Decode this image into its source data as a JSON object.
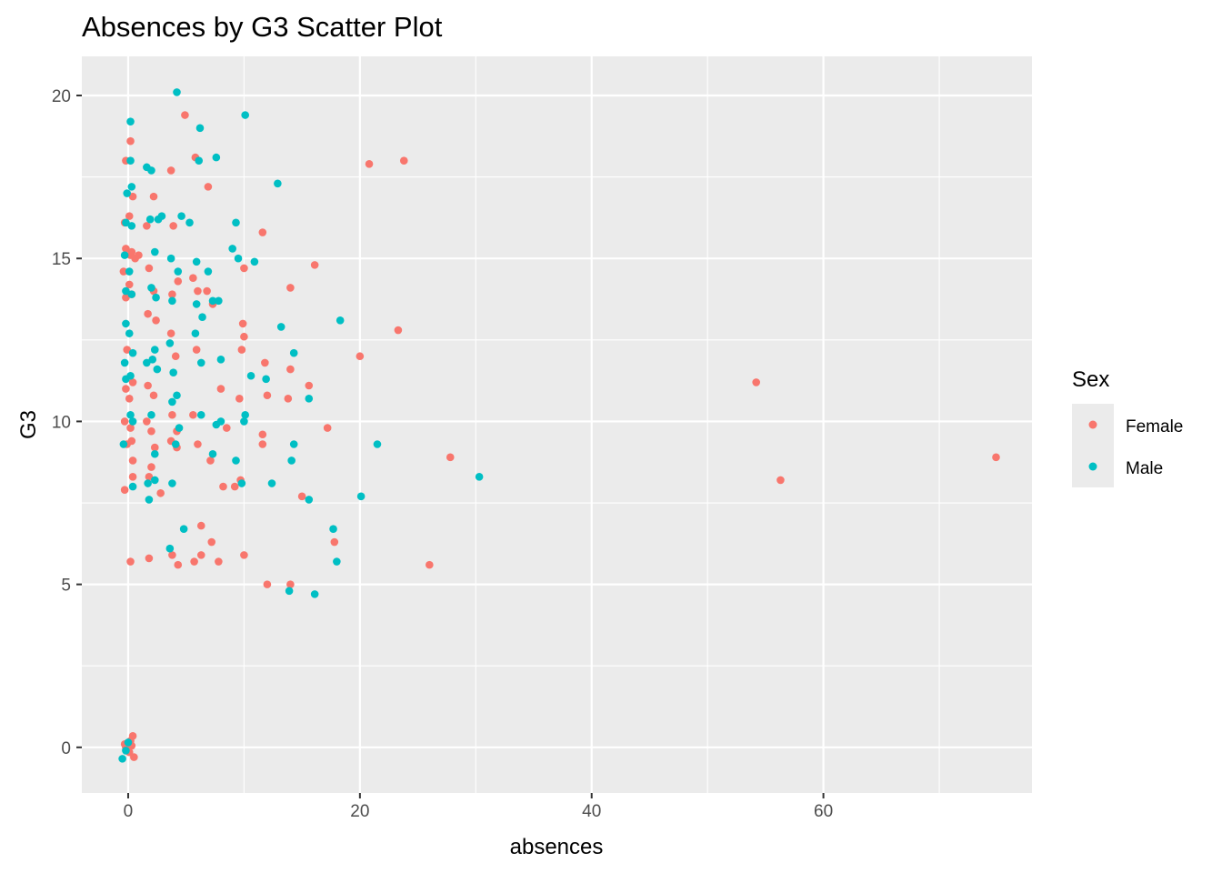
{
  "chart_data": {
    "type": "scatter",
    "title": "Absences by G3 Scatter Plot",
    "xlabel": "absences",
    "ylabel": "G3",
    "xlim": [
      -4,
      78
    ],
    "ylim": [
      -1.4,
      21.2
    ],
    "x_ticks": [
      0,
      20,
      40,
      60
    ],
    "y_ticks": [
      0,
      5,
      10,
      15,
      20
    ],
    "x_tick_labels": [
      "0",
      "20",
      "40",
      "60"
    ],
    "y_tick_labels": [
      "0",
      "5",
      "10",
      "15",
      "20"
    ],
    "grid": true,
    "panel_background": "#ebebeb",
    "legend": {
      "title": "Sex",
      "position": "right",
      "entries": [
        {
          "label": "Female",
          "color": "#f8766d"
        },
        {
          "label": "Male",
          "color": "#00bfc4"
        }
      ]
    },
    "series": [
      {
        "name": "Female",
        "color": "#f8766d",
        "points": [
          [
            -0.2,
            18.0
          ],
          [
            0.2,
            18.6
          ],
          [
            0.4,
            16.9
          ],
          [
            -0.3,
            16.1
          ],
          [
            0.1,
            16.3
          ],
          [
            0.3,
            15.2
          ],
          [
            -0.2,
            15.3
          ],
          [
            0.2,
            15.1
          ],
          [
            0.6,
            15.0
          ],
          [
            0.9,
            15.1
          ],
          [
            -0.4,
            14.6
          ],
          [
            0.1,
            14.2
          ],
          [
            -0.2,
            13.8
          ],
          [
            0.3,
            13.9
          ],
          [
            -0.1,
            12.2
          ],
          [
            0.4,
            11.2
          ],
          [
            -0.2,
            11.0
          ],
          [
            0.1,
            10.7
          ],
          [
            -0.3,
            10.0
          ],
          [
            0.2,
            9.8
          ],
          [
            -0.1,
            9.3
          ],
          [
            0.3,
            9.4
          ],
          [
            0.4,
            8.3
          ],
          [
            0.4,
            8.8
          ],
          [
            -0.3,
            7.9
          ],
          [
            0.2,
            5.7
          ],
          [
            -0.2,
            0.0
          ],
          [
            0.2,
            0.2
          ],
          [
            0.4,
            0.35
          ],
          [
            -0.3,
            0.1
          ],
          [
            0.1,
            -0.15
          ],
          [
            0.5,
            -0.3
          ],
          [
            0.3,
            0.05
          ],
          [
            1.6,
            16.0
          ],
          [
            2.2,
            16.9
          ],
          [
            1.8,
            14.7
          ],
          [
            2.2,
            14.0
          ],
          [
            1.7,
            13.3
          ],
          [
            2.4,
            13.1
          ],
          [
            1.7,
            11.1
          ],
          [
            2.2,
            10.8
          ],
          [
            1.6,
            10.0
          ],
          [
            2.0,
            9.7
          ],
          [
            2.3,
            9.2
          ],
          [
            1.8,
            8.3
          ],
          [
            2.0,
            8.6
          ],
          [
            1.8,
            5.8
          ],
          [
            2.8,
            7.8
          ],
          [
            3.7,
            17.7
          ],
          [
            3.9,
            16.0
          ],
          [
            3.8,
            13.9
          ],
          [
            3.7,
            12.7
          ],
          [
            4.3,
            14.3
          ],
          [
            4.1,
            12.0
          ],
          [
            3.8,
            10.2
          ],
          [
            4.2,
            9.7
          ],
          [
            3.7,
            9.4
          ],
          [
            4.2,
            9.2
          ],
          [
            3.8,
            5.9
          ],
          [
            4.3,
            5.6
          ],
          [
            4.9,
            19.4
          ],
          [
            5.8,
            18.1
          ],
          [
            5.6,
            14.4
          ],
          [
            6.0,
            14.0
          ],
          [
            5.9,
            12.2
          ],
          [
            5.6,
            10.2
          ],
          [
            6.0,
            9.3
          ],
          [
            5.7,
            5.7
          ],
          [
            6.3,
            5.9
          ],
          [
            6.3,
            6.8
          ],
          [
            6.9,
            17.2
          ],
          [
            6.8,
            14.0
          ],
          [
            7.3,
            13.6
          ],
          [
            7.1,
            8.8
          ],
          [
            7.2,
            6.3
          ],
          [
            7.8,
            5.7
          ],
          [
            8.0,
            11.0
          ],
          [
            8.5,
            9.8
          ],
          [
            8.2,
            8.0
          ],
          [
            9.2,
            8.0
          ],
          [
            9.7,
            8.2
          ],
          [
            9.8,
            12.2
          ],
          [
            9.9,
            13.0
          ],
          [
            9.6,
            10.7
          ],
          [
            10.0,
            14.7
          ],
          [
            10.0,
            12.6
          ],
          [
            10.0,
            5.9
          ],
          [
            11.6,
            15.8
          ],
          [
            11.8,
            11.8
          ],
          [
            11.6,
            9.3
          ],
          [
            11.6,
            9.6
          ],
          [
            12.0,
            10.8
          ],
          [
            12.0,
            5.0
          ],
          [
            14.0,
            14.1
          ],
          [
            14.0,
            11.6
          ],
          [
            13.8,
            10.7
          ],
          [
            14.0,
            5.0
          ],
          [
            15.0,
            7.7
          ],
          [
            15.6,
            11.1
          ],
          [
            16.1,
            14.8
          ],
          [
            17.2,
            9.8
          ],
          [
            17.8,
            6.3
          ],
          [
            20.0,
            12.0
          ],
          [
            20.8,
            17.9
          ],
          [
            23.8,
            18.0
          ],
          [
            23.3,
            12.8
          ],
          [
            27.8,
            8.9
          ],
          [
            26.0,
            5.6
          ],
          [
            54.2,
            11.2
          ],
          [
            56.3,
            8.2
          ],
          [
            74.9,
            8.9
          ]
        ]
      },
      {
        "name": "Male",
        "color": "#00bfc4",
        "points": [
          [
            0.2,
            19.2
          ],
          [
            -0.1,
            17.0
          ],
          [
            0.3,
            17.2
          ],
          [
            0.2,
            18.0
          ],
          [
            -0.2,
            16.1
          ],
          [
            0.3,
            16.0
          ],
          [
            -0.3,
            15.1
          ],
          [
            0.1,
            14.6
          ],
          [
            -0.2,
            14.0
          ],
          [
            0.3,
            13.9
          ],
          [
            -0.2,
            13.0
          ],
          [
            0.1,
            12.7
          ],
          [
            0.4,
            12.1
          ],
          [
            -0.3,
            11.8
          ],
          [
            0.2,
            11.4
          ],
          [
            -0.2,
            11.3
          ],
          [
            0.2,
            10.2
          ],
          [
            0.4,
            10.0
          ],
          [
            -0.4,
            9.3
          ],
          [
            0.4,
            8.0
          ],
          [
            -0.5,
            -0.35
          ],
          [
            0.0,
            0.15
          ],
          [
            -0.2,
            -0.1
          ],
          [
            1.6,
            17.8
          ],
          [
            2.0,
            17.7
          ],
          [
            1.9,
            16.2
          ],
          [
            2.3,
            15.2
          ],
          [
            2.0,
            14.1
          ],
          [
            2.4,
            13.8
          ],
          [
            2.3,
            12.2
          ],
          [
            1.6,
            11.8
          ],
          [
            2.1,
            11.9
          ],
          [
            2.5,
            11.6
          ],
          [
            2.0,
            10.2
          ],
          [
            1.7,
            8.1
          ],
          [
            2.3,
            8.2
          ],
          [
            1.8,
            7.6
          ],
          [
            2.3,
            9.0
          ],
          [
            2.6,
            16.2
          ],
          [
            2.9,
            16.3
          ],
          [
            3.7,
            15.0
          ],
          [
            3.8,
            13.7
          ],
          [
            3.6,
            12.4
          ],
          [
            3.9,
            11.5
          ],
          [
            3.8,
            10.6
          ],
          [
            4.2,
            10.8
          ],
          [
            4.4,
            9.8
          ],
          [
            4.1,
            9.3
          ],
          [
            3.8,
            8.1
          ],
          [
            3.6,
            6.1
          ],
          [
            4.8,
            6.7
          ],
          [
            4.2,
            20.1
          ],
          [
            4.6,
            16.3
          ],
          [
            5.3,
            16.1
          ],
          [
            4.3,
            14.6
          ],
          [
            6.2,
            19.0
          ],
          [
            6.1,
            18.0
          ],
          [
            5.9,
            14.9
          ],
          [
            5.9,
            13.6
          ],
          [
            6.4,
            13.2
          ],
          [
            5.8,
            12.7
          ],
          [
            6.3,
            11.8
          ],
          [
            6.3,
            10.2
          ],
          [
            6.9,
            14.6
          ],
          [
            7.6,
            18.1
          ],
          [
            7.3,
            13.7
          ],
          [
            7.8,
            13.7
          ],
          [
            8.0,
            11.9
          ],
          [
            7.6,
            9.9
          ],
          [
            8.0,
            10.0
          ],
          [
            7.3,
            9.0
          ],
          [
            9.0,
            15.3
          ],
          [
            9.3,
            16.1
          ],
          [
            9.5,
            15.0
          ],
          [
            9.3,
            8.8
          ],
          [
            10.1,
            19.4
          ],
          [
            10.0,
            10.0
          ],
          [
            10.1,
            10.2
          ],
          [
            9.8,
            8.1
          ],
          [
            10.6,
            11.4
          ],
          [
            10.9,
            14.9
          ],
          [
            11.9,
            11.3
          ],
          [
            12.4,
            8.1
          ],
          [
            12.9,
            17.3
          ],
          [
            13.2,
            12.9
          ],
          [
            14.3,
            12.1
          ],
          [
            14.3,
            9.3
          ],
          [
            14.1,
            8.8
          ],
          [
            13.9,
            4.8
          ],
          [
            15.6,
            7.6
          ],
          [
            15.6,
            10.7
          ],
          [
            16.1,
            4.7
          ],
          [
            17.7,
            6.7
          ],
          [
            18.0,
            5.7
          ],
          [
            18.3,
            13.1
          ],
          [
            20.1,
            7.7
          ],
          [
            21.5,
            9.3
          ],
          [
            30.3,
            8.3
          ]
        ]
      }
    ]
  }
}
